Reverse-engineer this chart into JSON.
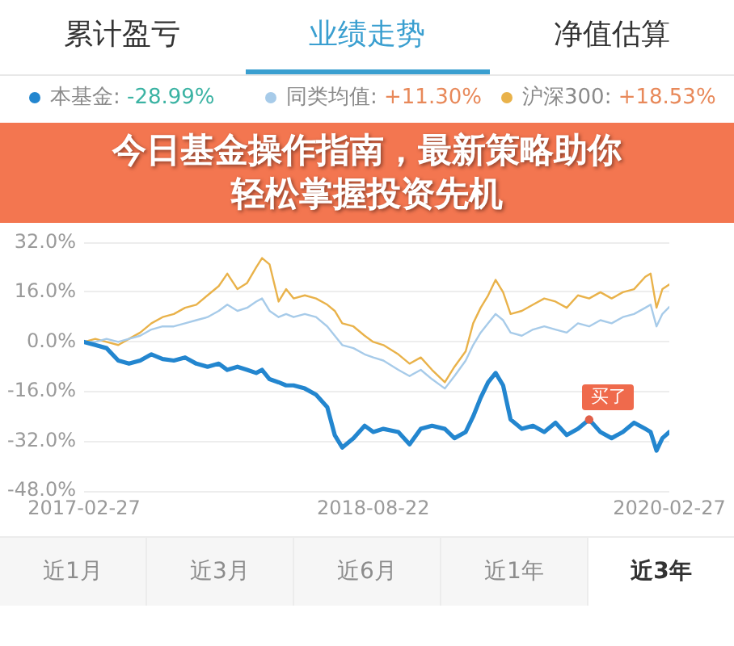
{
  "chart_data": {
    "type": "line",
    "title": "今日基金操作指南，最新策略助你轻松掌握投资先机",
    "x": [
      "2017-02-27",
      "2017-03-20",
      "2017-04-10",
      "2017-05-02",
      "2017-05-22",
      "2017-06-12",
      "2017-07-03",
      "2017-07-24",
      "2017-08-14",
      "2017-09-04",
      "2017-09-25",
      "2017-10-16",
      "2017-11-06",
      "2017-11-22",
      "2017-12-11",
      "2017-12-29",
      "2018-01-15",
      "2018-01-26",
      "2018-02-09",
      "2018-02-26",
      "2018-03-12",
      "2018-03-26",
      "2018-04-16",
      "2018-05-07",
      "2018-05-28",
      "2018-06-11",
      "2018-06-25",
      "2018-07-16",
      "2018-08-06",
      "2018-08-22",
      "2018-09-10",
      "2018-10-08",
      "2018-10-29",
      "2018-11-19",
      "2018-12-10",
      "2019-01-03",
      "2019-01-21",
      "2019-02-11",
      "2019-02-25",
      "2019-03-11",
      "2019-03-25",
      "2019-04-08",
      "2019-04-22",
      "2019-05-06",
      "2019-05-27",
      "2019-06-17",
      "2019-07-08",
      "2019-07-29",
      "2019-08-19",
      "2019-09-09",
      "2019-09-30",
      "2019-10-21",
      "2019-11-11",
      "2019-12-02",
      "2019-12-23",
      "2020-01-13",
      "2020-01-23",
      "2020-02-03",
      "2020-02-14",
      "2020-02-27"
    ],
    "series": [
      {
        "name": "本基金: -28.99%",
        "color": "#2386cf",
        "values": [
          0,
          -1,
          -2,
          -6,
          -7,
          -6,
          -4,
          -5.5,
          -6,
          -5,
          -7,
          -8,
          -7,
          -9,
          -8,
          -9,
          -10,
          -9,
          -12,
          -13,
          -14,
          -14,
          -15,
          -17,
          -21,
          -30,
          -34,
          -31,
          -27,
          -29,
          -28,
          -29,
          -33,
          -28,
          -27,
          -28,
          -31,
          -29,
          -24,
          -18,
          -13,
          -10,
          -14,
          -25,
          -28,
          -27,
          -29,
          -26,
          -30,
          -28,
          -25,
          -29,
          -31,
          -29,
          -26,
          -28,
          -29,
          -35,
          -31,
          -28.99
        ]
      },
      {
        "name": "同类均值: +11.30%",
        "color": "#a7cbe9",
        "values": [
          0,
          0,
          1,
          0,
          1,
          2,
          4,
          5,
          5,
          6,
          7,
          8,
          10,
          12,
          10,
          11,
          13,
          14,
          10,
          8,
          9,
          8,
          9,
          8,
          5,
          2,
          -1,
          -2,
          -4,
          -5,
          -6,
          -9,
          -11,
          -9,
          -12,
          -15,
          -11,
          -6,
          -1,
          3,
          6,
          9,
          7,
          3,
          2,
          4,
          5,
          4,
          3,
          6,
          5,
          7,
          6,
          8,
          9,
          11,
          12,
          5,
          9,
          11.3
        ]
      },
      {
        "name": "沪深300: +18.53%",
        "color": "#e9b24a",
        "values": [
          0,
          1,
          0,
          -1,
          1,
          3,
          6,
          8,
          9,
          11,
          12,
          15,
          18,
          22,
          17,
          19,
          24,
          27,
          25,
          13,
          17,
          14,
          15,
          14,
          12,
          10,
          6,
          5,
          2,
          0,
          -1,
          -4,
          -7,
          -5,
          -9,
          -13,
          -8,
          -3,
          6,
          11,
          15,
          20,
          16,
          9,
          10,
          12,
          14,
          13,
          11,
          15,
          14,
          16,
          14,
          16,
          17,
          21,
          22,
          11,
          17,
          18.53
        ]
      }
    ],
    "xlim": [
      "2017-02-27",
      "2020-02-27"
    ],
    "xticks": [
      "2017-02-27",
      "2018-08-22",
      "2020-02-27"
    ],
    "ylim": [
      -48,
      32
    ],
    "yticks": [
      {
        "value": -48,
        "label": "-48.0%"
      },
      {
        "value": -32,
        "label": "-32.0%"
      },
      {
        "value": -16,
        "label": "-16.0%"
      },
      {
        "value": 0,
        "label": "0.0%"
      },
      {
        "value": 16,
        "label": "16.0%"
      },
      {
        "value": 32,
        "label": "32.0%"
      }
    ],
    "grid": "y",
    "legend": "top",
    "marker": "none",
    "annotations": [
      "累计盈亏",
      "业绩走势",
      "净值估算",
      "近1月",
      "近3月",
      "近6月",
      "近1年",
      "近3年",
      {
        "text": "买了",
        "x": "2019-09-30",
        "y": -25
      }
    ]
  }
}
